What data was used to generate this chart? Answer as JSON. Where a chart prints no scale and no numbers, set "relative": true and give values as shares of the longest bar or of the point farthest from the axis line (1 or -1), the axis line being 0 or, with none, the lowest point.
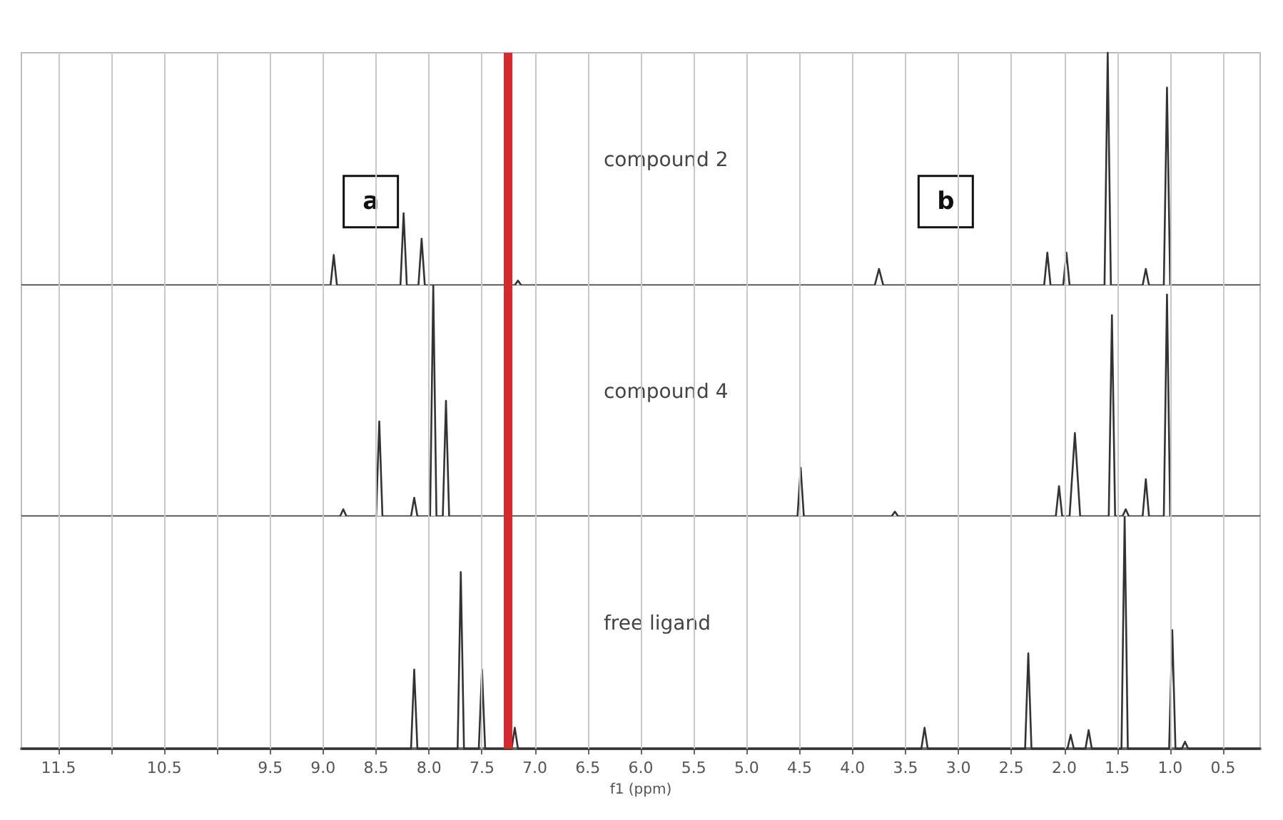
{
  "chart_data": [
    {
      "type": "line",
      "relative": true,
      "xlim": [
        11.85,
        0.15
      ],
      "xticks": [
        11.5,
        {
          "value": 11.0,
          "label": null
        },
        10.5,
        {
          "value": 10.0,
          "label": null
        },
        9.5,
        9.0,
        8.5,
        8.0,
        7.5,
        7.0,
        6.5,
        6.0,
        5.5,
        5.0,
        4.5,
        4.0,
        3.5,
        3.0,
        2.5,
        2.0,
        1.5,
        1.0,
        0.5
      ],
      "grid": "x",
      "tick_labels": false,
      "marker": "none",
      "ref_lines": [
        {
          "axis": "x",
          "value": 7.26,
          "color": "#d42a30"
        }
      ],
      "annotations": [
        {
          "text": "a",
          "x": 8.55,
          "y": 0.36
        },
        {
          "text": "b",
          "x": 3.12,
          "y": 0.36
        }
      ],
      "series": [
        {
          "name": "compound 2",
          "color": "#333333",
          "x": [
            11.85,
            8.93,
            8.9,
            8.87,
            8.27,
            8.24,
            8.21,
            8.1,
            8.07,
            8.04,
            7.19,
            7.16,
            7.13,
            3.79,
            3.75,
            3.71,
            2.19,
            2.16,
            2.13,
            2.01,
            1.98,
            1.95,
            1.62,
            1.59,
            1.56,
            1.26,
            1.23,
            1.2,
            1.06,
            1.03,
            1.0,
            0.15
          ],
          "values": [
            0,
            0,
            0.13,
            0,
            0,
            0.31,
            0,
            0,
            0.2,
            0,
            0,
            0.02,
            0,
            0,
            0.07,
            0,
            0,
            0.14,
            0,
            0,
            0.14,
            0,
            0,
            1,
            0,
            0,
            0.07,
            0,
            0,
            0.85,
            0,
            0
          ]
        }
      ]
    },
    {
      "type": "line",
      "relative": true,
      "xlim": [
        11.85,
        0.15
      ],
      "xticks": [
        11.5,
        {
          "value": 11.0,
          "label": null
        },
        10.5,
        {
          "value": 10.0,
          "label": null
        },
        9.5,
        9.0,
        8.5,
        8.0,
        7.5,
        7.0,
        6.5,
        6.0,
        5.5,
        5.0,
        4.5,
        4.0,
        3.5,
        3.0,
        2.5,
        2.0,
        1.5,
        1.0,
        0.5
      ],
      "grid": "x",
      "tick_labels": false,
      "marker": "none",
      "ref_lines": [
        {
          "axis": "x",
          "value": 7.26,
          "color": "#d42a30"
        }
      ],
      "series": [
        {
          "name": "compound 4",
          "color": "#333333",
          "x": [
            11.85,
            8.84,
            8.81,
            8.78,
            8.5,
            8.47,
            8.44,
            8.17,
            8.14,
            8.11,
            7.99,
            7.96,
            7.93,
            7.87,
            7.84,
            7.81,
            4.52,
            4.49,
            4.46,
            3.63,
            3.6,
            3.57,
            2.08,
            2.05,
            2.02,
            1.95,
            1.9,
            1.85,
            1.58,
            1.55,
            1.52,
            1.45,
            1.42,
            1.39,
            1.26,
            1.23,
            1.2,
            1.06,
            1.03,
            1.0,
            0.15
          ],
          "values": [
            0,
            0,
            0.03,
            0,
            0,
            0.41,
            0,
            0,
            0.08,
            0,
            0,
            1,
            0,
            0,
            0.5,
            0,
            0,
            0.21,
            0,
            0,
            0.02,
            0,
            0,
            0.13,
            0,
            0,
            0.36,
            0,
            0,
            0.87,
            0,
            0,
            0.03,
            0,
            0,
            0.16,
            0,
            0,
            0.96,
            0,
            0
          ]
        }
      ]
    },
    {
      "type": "line",
      "relative": true,
      "xlim": [
        11.85,
        0.15
      ],
      "grid": "x",
      "tick_labels": "x",
      "marker": "none",
      "xlabel": "f1 (ppm)",
      "xticks": [
        11.5,
        {
          "value": 11.0,
          "label": null
        },
        10.5,
        {
          "value": 10.0,
          "label": null
        },
        9.5,
        {
          "value": 9.0,
          "label": "9.0"
        },
        8.5,
        {
          "value": 8.0,
          "label": "8.0"
        },
        7.5,
        {
          "value": 7.0,
          "label": "7.0"
        },
        6.5,
        {
          "value": 6.0,
          "label": "6.0"
        },
        5.5,
        {
          "value": 5.0,
          "label": "5.0"
        },
        4.5,
        {
          "value": 4.0,
          "label": "4.0"
        },
        3.5,
        {
          "value": 3.0,
          "label": "3.0"
        },
        2.5,
        {
          "value": 2.0,
          "label": "2.0"
        },
        1.5,
        {
          "value": 1.0,
          "label": "1.0"
        },
        0.5
      ],
      "ref_lines": [
        {
          "axis": "x",
          "value": 7.26,
          "color": "#d42a30"
        }
      ],
      "series": [
        {
          "name": "free ligand",
          "color": "#333333",
          "x": [
            11.85,
            8.17,
            8.14,
            8.11,
            7.73,
            7.7,
            7.67,
            7.53,
            7.5,
            7.47,
            7.22,
            7.19,
            7.16,
            3.35,
            3.32,
            3.29,
            2.37,
            2.34,
            2.31,
            1.97,
            1.94,
            1.91,
            1.8,
            1.77,
            1.74,
            1.46,
            1.43,
            1.4,
            1.01,
            0.98,
            0.95,
            0.89,
            0.86,
            0.83,
            0.15
          ],
          "values": [
            0,
            0,
            0.34,
            0,
            0,
            0.76,
            0,
            0,
            0.34,
            0,
            0,
            0.09,
            0,
            0,
            0.09,
            0,
            0,
            0.41,
            0,
            0,
            0.06,
            0,
            0,
            0.08,
            0,
            0,
            1,
            0,
            0,
            0.51,
            0,
            0,
            0.03,
            0,
            0
          ]
        }
      ]
    }
  ]
}
